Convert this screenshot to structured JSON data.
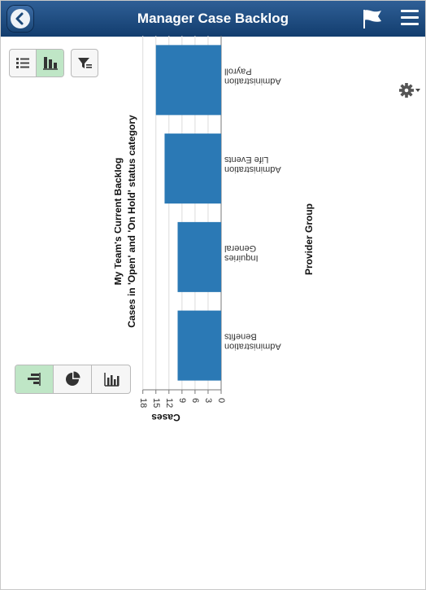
{
  "header": {
    "title": "Manager Case Backlog",
    "back_icon": "back-icon",
    "flag_icon": "flag-icon",
    "menu_icon": "menu-icon",
    "bg_color": "#1d4a7e"
  },
  "view_toggle": {
    "options": [
      "list-view-icon",
      "chart-view-icon"
    ],
    "selected": "chart-view-icon"
  },
  "filter_icon": "filter-icon",
  "settings_icon": "gear-icon",
  "chart_type_toggle": {
    "options": [
      "bar-chart-icon",
      "pie-chart-icon",
      "column-chart-icon"
    ],
    "selected": "bar-chart-icon"
  },
  "accent_color": "#2b79b5",
  "chart_data": {
    "type": "bar",
    "title": "My Team's Current Backlog",
    "subtitle": "Cases in 'Open' and 'On Hold' status category",
    "xlabel": "Provider Group",
    "ylabel": "Cases",
    "categories": [
      "Benefits Administration",
      "General Inquiries",
      "Life Events Administration",
      "Payroll Administration"
    ],
    "category_lines": [
      [
        "Benefits",
        "Administration"
      ],
      [
        "General",
        "Inquiries"
      ],
      [
        "Life Events",
        "Administration"
      ],
      [
        "Payroll",
        "Administration"
      ]
    ],
    "values": [
      10,
      10,
      13,
      15
    ],
    "ylim": [
      0,
      18
    ],
    "yticks": [
      "0",
      "3",
      "6",
      "9",
      "12",
      "15",
      "18"
    ],
    "grid": true,
    "bar_color": "#2b79b5"
  }
}
